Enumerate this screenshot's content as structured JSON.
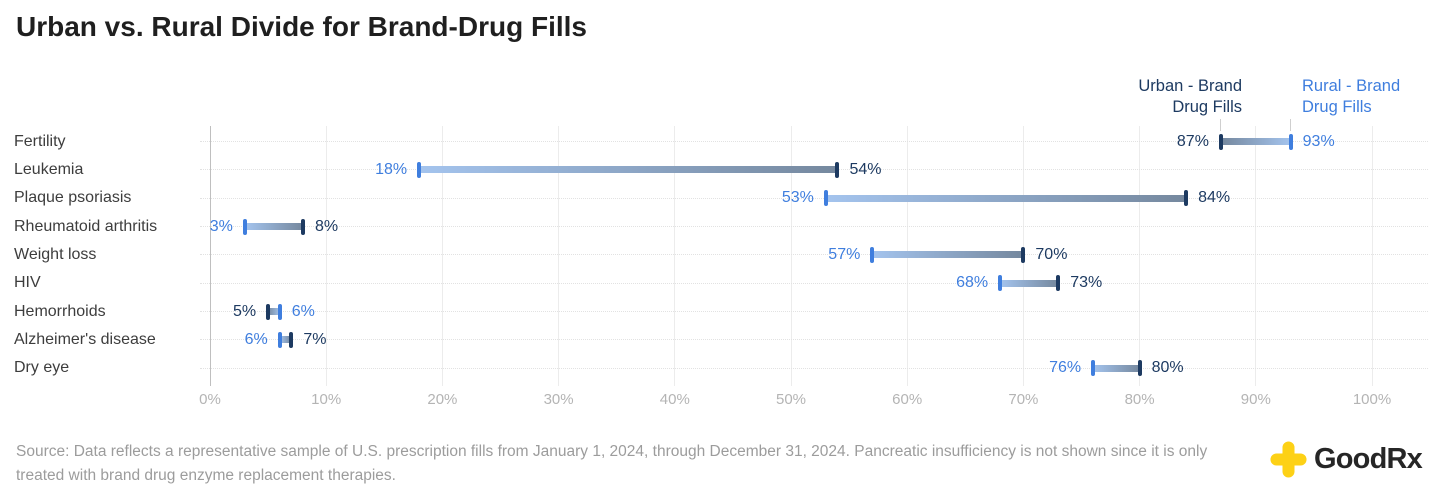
{
  "title": "Urban vs. Rural Divide for Brand-Drug Fills",
  "legend": {
    "urban": {
      "line1": "Urban - Brand",
      "line2": "Drug Fills"
    },
    "rural": {
      "line1": "Rural - Brand",
      "line2": "Drug Fills"
    }
  },
  "colors": {
    "urban": "#1d3a61",
    "rural": "#3f7ede",
    "urban_bar_body": "#75889e",
    "rural_bar_body": "#a4c4ee",
    "grid": "#ececec",
    "axis_zero_line": "#bfbfbf",
    "axis_text": "#b4b4b4",
    "goodrx_yellow": "#fdd116"
  },
  "chart_data": {
    "type": "bar",
    "subtype": "horizontal-dumbbell-range",
    "title": "Urban vs. Rural Divide for Brand-Drug Fills",
    "categories": [
      "Fertility",
      "Leukemia",
      "Plaque psoriasis",
      "Rheumatoid arthritis",
      "Weight loss",
      "HIV",
      "Hemorrhoids",
      "Alzheimer's disease",
      "Dry eye"
    ],
    "series": [
      {
        "name": "Urban - Brand Drug Fills",
        "values": [
          87,
          54,
          84,
          8,
          70,
          73,
          5,
          7,
          80
        ]
      },
      {
        "name": "Rural - Brand Drug Fills",
        "values": [
          93,
          18,
          53,
          3,
          57,
          68,
          6,
          6,
          76
        ]
      }
    ],
    "value_suffix": "%",
    "xlabel": "",
    "ylabel": "",
    "xlim": [
      0,
      100
    ],
    "x_ticks": [
      "0%",
      "10%",
      "20%",
      "30%",
      "40%",
      "50%",
      "60%",
      "70%",
      "80%",
      "90%",
      "100%"
    ],
    "grid": "vertical solid decade lines + dotted horizontal row lines",
    "legend_position": "top-right above first row"
  },
  "source": {
    "text": "Source: Data reflects a representative sample of U.S. prescription fills from January 1, 2024, through December 31, 2024. Pancreatic insufficiency is not shown since it is only treated with brand drug enzyme replacement therapies."
  },
  "logo": {
    "brand": "GoodRx",
    "icon": "goodrx-cross-icon"
  }
}
